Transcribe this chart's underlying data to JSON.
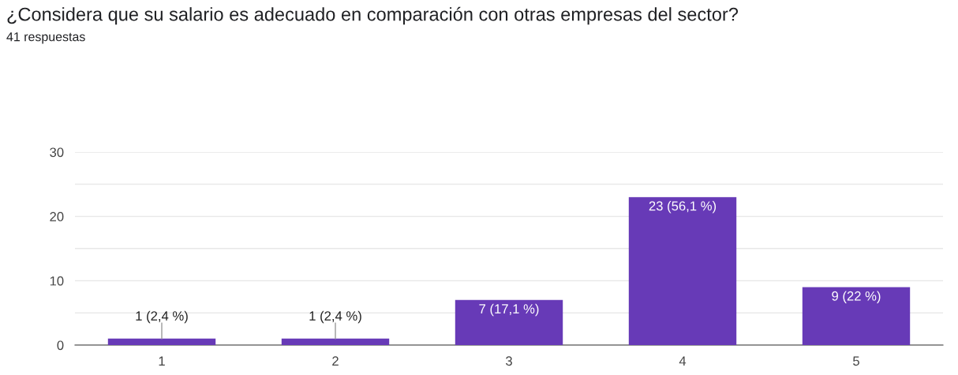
{
  "chart_data": {
    "type": "bar",
    "title": "¿Considera que su salario es adecuado en comparación con otras empresas del sector?",
    "subtitle": "41 respuestas",
    "categories": [
      "1",
      "2",
      "3",
      "4",
      "5"
    ],
    "values": [
      1,
      1,
      7,
      23,
      9
    ],
    "value_labels": [
      "1 (2,4 %)",
      "1 (2,4 %)",
      "7 (17,1 %)",
      "23 (56,1 %)",
      "9 (22 %)"
    ],
    "color": "#673ab7",
    "ylim": [
      0,
      30
    ],
    "yticks": [
      0,
      {
        "value": 5,
        "label": null
      },
      10,
      {
        "value": 15,
        "label": null
      },
      20,
      {
        "value": 25,
        "label": null
      },
      30
    ],
    "grid": "y"
  }
}
